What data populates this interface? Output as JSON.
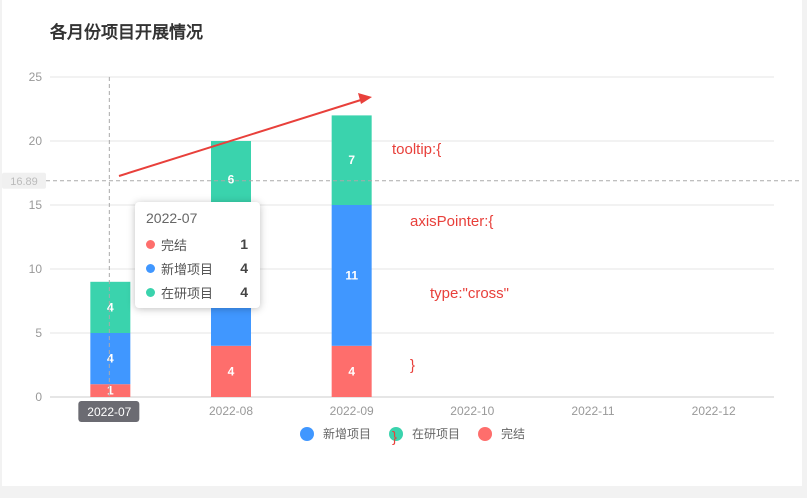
{
  "page_title": "各月份项目开展情况",
  "colors": {
    "new": "#4097ff",
    "research": "#3ad3ad",
    "done": "#fe6e6c",
    "annotation": "#e8403b",
    "axis_text": "#999999"
  },
  "chart_data": {
    "type": "bar",
    "stacked": true,
    "title": "各月份项目开展情况",
    "categories": [
      "2022-07",
      "2022-08",
      "2022-09",
      "2022-10",
      "2022-11",
      "2022-12"
    ],
    "series": [
      {
        "name": "完结",
        "color": "#fe6e6c",
        "values": [
          1,
          4,
          4,
          null,
          null,
          null
        ]
      },
      {
        "name": "新增项目",
        "color": "#4097ff",
        "values": [
          4,
          10,
          11,
          null,
          null,
          null
        ]
      },
      {
        "name": "在研项目",
        "color": "#3ad3ad",
        "values": [
          4,
          6,
          7,
          null,
          null,
          null
        ]
      }
    ],
    "value_labels": {
      "完结": [
        "1",
        "4",
        "4"
      ],
      "新增项目": [
        "4",
        "",
        "11"
      ],
      "在研项目": [
        "4",
        "6",
        "7"
      ]
    },
    "ylim": [
      0,
      25
    ],
    "yticks": [
      0,
      5,
      10,
      15,
      20,
      25
    ],
    "grid": true,
    "legend_position": "bottom",
    "legend": [
      {
        "name": "新增项目",
        "color": "#4097ff"
      },
      {
        "name": "在研项目",
        "color": "#3ad3ad"
      },
      {
        "name": "完结",
        "color": "#fe6e6c"
      }
    ],
    "axis_pointer": {
      "type": "cross",
      "x_category": "2022-07",
      "y_value": 16.89,
      "y_label": "16.89"
    }
  },
  "tooltip": {
    "title": "2022-07",
    "rows": [
      {
        "name": "完结",
        "value": "1",
        "color": "#fe6e6c"
      },
      {
        "name": "新增项目",
        "value": "4",
        "color": "#4097ff"
      },
      {
        "name": "在研项目",
        "value": "4",
        "color": "#3ad3ad"
      }
    ]
  },
  "annotation": {
    "lines": [
      "tooltip:{",
      "axisPointer:{",
      "type:\"cross\"",
      "}",
      "}"
    ]
  }
}
